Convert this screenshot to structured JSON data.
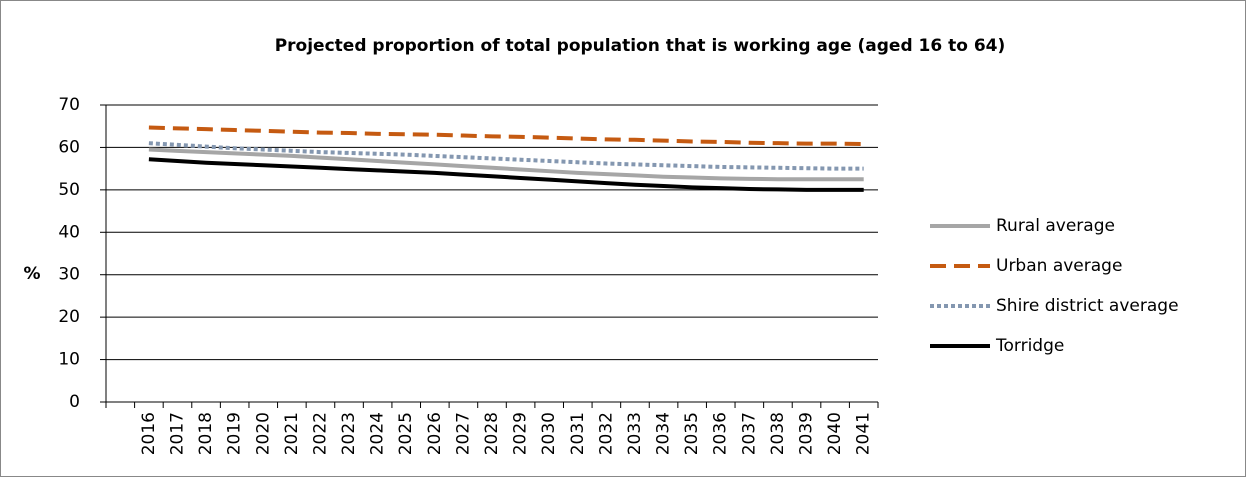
{
  "chart_data": {
    "type": "line",
    "title": "Projected proportion of total population that is working age (aged 16 to 64)",
    "y_label": "%",
    "categories": [
      null,
      "2016",
      "2017",
      "2018",
      "2019",
      "2020",
      "2021",
      "2022",
      "2023",
      "2024",
      "2025",
      "2026",
      "2027",
      "2028",
      "2029",
      "2030",
      "2031",
      "2032",
      "2033",
      "2034",
      "2035",
      "2036",
      "2037",
      "2038",
      "2039",
      "2040",
      "2041"
    ],
    "series": [
      {
        "name": "Rural average",
        "color": "#a6a6a6",
        "style": "solid",
        "values": [
          null,
          59.5,
          59.2,
          58.9,
          58.6,
          58.3,
          58.0,
          57.6,
          57.2,
          56.8,
          56.4,
          56.0,
          55.6,
          55.2,
          54.8,
          54.4,
          54.0,
          53.7,
          53.4,
          53.1,
          52.9,
          52.7,
          52.6,
          52.5,
          52.5,
          52.5,
          52.5
        ]
      },
      {
        "name": "Urban average",
        "color": "#c55a11",
        "style": "dashed",
        "values": [
          null,
          64.7,
          64.5,
          64.3,
          64.1,
          63.9,
          63.7,
          63.5,
          63.4,
          63.2,
          63.1,
          63.0,
          62.8,
          62.6,
          62.5,
          62.3,
          62.1,
          61.9,
          61.8,
          61.6,
          61.4,
          61.3,
          61.1,
          61.0,
          60.9,
          60.9,
          60.8
        ]
      },
      {
        "name": "Shire district average",
        "color": "#8497b0",
        "style": "dotted",
        "values": [
          null,
          61.0,
          60.6,
          60.2,
          59.8,
          59.5,
          59.2,
          58.9,
          58.7,
          58.5,
          58.3,
          58.0,
          57.7,
          57.4,
          57.1,
          56.8,
          56.5,
          56.2,
          56.0,
          55.8,
          55.6,
          55.4,
          55.3,
          55.2,
          55.1,
          55.0,
          55.0
        ]
      },
      {
        "name": "Torridge",
        "color": "#000000",
        "style": "solid",
        "values": [
          null,
          57.2,
          56.8,
          56.4,
          56.1,
          55.8,
          55.5,
          55.2,
          54.9,
          54.6,
          54.3,
          54.0,
          53.6,
          53.2,
          52.8,
          52.4,
          52.0,
          51.6,
          51.2,
          50.9,
          50.6,
          50.4,
          50.2,
          50.1,
          50.0,
          50.0,
          50.0
        ]
      }
    ],
    "ylim": [
      0,
      70
    ],
    "yticks": [
      0,
      10,
      20,
      30,
      40,
      50,
      60,
      70
    ],
    "grid": true,
    "legend": "right"
  }
}
